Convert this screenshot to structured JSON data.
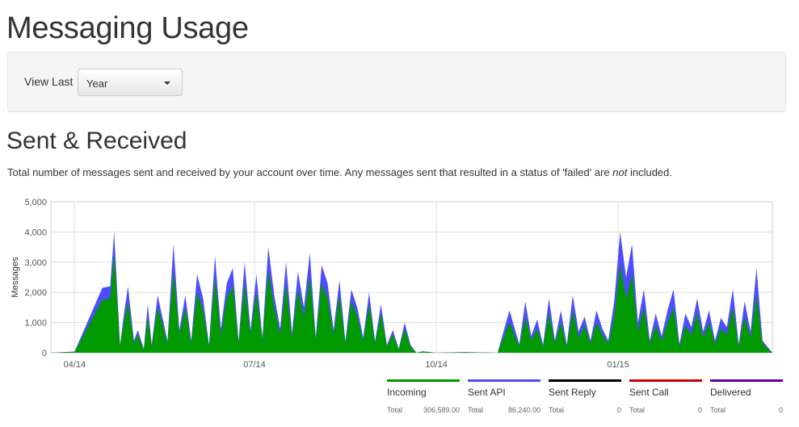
{
  "page": {
    "title": "Messaging Usage"
  },
  "filter": {
    "label": "View Last",
    "selected": "Year"
  },
  "section": {
    "title": "Sent & Received",
    "desc_before": "Total number of messages sent and received by your account over time. Any messages sent that resulted in a status of 'failed' are ",
    "desc_emphasis": "not",
    "desc_after": " included."
  },
  "chart_data": {
    "type": "area",
    "ylabel": "Messages",
    "xlabel": "",
    "ylim": [
      0,
      5000
    ],
    "y_ticks": [
      0,
      1000,
      2000,
      3000,
      4000,
      5000
    ],
    "y_tick_labels": [
      "0",
      "1,000",
      "2,000",
      "3,000",
      "4,000",
      "5,000"
    ],
    "x_range": [
      "2014-03-20",
      "2015-03-20"
    ],
    "x_ticks": [
      {
        "date": "2014-04-01",
        "label": "04/14"
      },
      {
        "date": "2014-07-01",
        "label": "07/14"
      },
      {
        "date": "2014-10-01",
        "label": "10/14"
      },
      {
        "date": "2015-01-01",
        "label": "01/15"
      }
    ],
    "grid": true,
    "stacked": true,
    "x_dates": [
      "2014-03-20",
      "2014-04-01",
      "2014-04-15",
      "2014-04-19",
      "2014-04-21",
      "2014-04-24",
      "2014-04-26",
      "2014-04-28",
      "2014-05-01",
      "2014-05-03",
      "2014-05-06",
      "2014-05-08",
      "2014-05-10",
      "2014-05-13",
      "2014-05-16",
      "2014-05-18",
      "2014-05-21",
      "2014-05-24",
      "2014-05-27",
      "2014-05-30",
      "2014-06-02",
      "2014-06-05",
      "2014-06-08",
      "2014-06-11",
      "2014-06-14",
      "2014-06-17",
      "2014-06-20",
      "2014-06-23",
      "2014-06-26",
      "2014-06-29",
      "2014-07-02",
      "2014-07-05",
      "2014-07-08",
      "2014-07-11",
      "2014-07-14",
      "2014-07-17",
      "2014-07-20",
      "2014-07-23",
      "2014-07-26",
      "2014-07-29",
      "2014-08-01",
      "2014-08-04",
      "2014-08-07",
      "2014-08-10",
      "2014-08-13",
      "2014-08-16",
      "2014-08-19",
      "2014-08-22",
      "2014-08-25",
      "2014-08-28",
      "2014-08-31",
      "2014-09-03",
      "2014-09-06",
      "2014-09-09",
      "2014-09-12",
      "2014-09-15",
      "2014-09-18",
      "2014-09-21",
      "2014-09-24",
      "2014-10-01",
      "2014-10-15",
      "2014-11-01",
      "2014-11-07",
      "2014-11-12",
      "2014-11-15",
      "2014-11-18",
      "2014-11-21",
      "2014-11-24",
      "2014-11-27",
      "2014-11-30",
      "2014-12-03",
      "2014-12-06",
      "2014-12-09",
      "2014-12-12",
      "2014-12-15",
      "2014-12-18",
      "2014-12-21",
      "2014-12-24",
      "2014-12-27",
      "2014-12-30",
      "2015-01-02",
      "2015-01-05",
      "2015-01-08",
      "2015-01-11",
      "2015-01-14",
      "2015-01-17",
      "2015-01-20",
      "2015-01-23",
      "2015-01-26",
      "2015-01-29",
      "2015-02-01",
      "2015-02-04",
      "2015-02-07",
      "2015-02-10",
      "2015-02-13",
      "2015-02-16",
      "2015-02-19",
      "2015-02-22",
      "2015-02-25",
      "2015-02-28",
      "2015-03-03",
      "2015-03-06",
      "2015-03-09",
      "2015-03-12",
      "2015-03-15",
      "2015-03-20"
    ],
    "series": [
      {
        "name": "Incoming",
        "color": "#009900",
        "values": [
          0,
          30,
          1750,
          1800,
          3300,
          200,
          1000,
          1700,
          300,
          600,
          100,
          1200,
          200,
          1500,
          800,
          300,
          2700,
          600,
          1500,
          300,
          2000,
          1400,
          200,
          2500,
          600,
          1800,
          2200,
          300,
          2300,
          600,
          2000,
          400,
          2700,
          1500,
          600,
          2300,
          500,
          2100,
          1200,
          2500,
          400,
          2300,
          1800,
          600,
          1900,
          300,
          1700,
          1200,
          400,
          1600,
          300,
          1300,
          200,
          600,
          100,
          800,
          200,
          0,
          40,
          0,
          20,
          0,
          1000,
          200,
          1200,
          400,
          800,
          200,
          1300,
          300,
          1000,
          200,
          1400,
          500,
          900,
          300,
          1000,
          600,
          300,
          1200,
          2900,
          1800,
          2600,
          700,
          1500,
          300,
          900,
          400,
          1000,
          1500,
          200,
          900,
          600,
          1300,
          500,
          1000,
          300,
          800,
          600,
          1500,
          200,
          1200,
          500,
          1900,
          300,
          0
        ]
      },
      {
        "name": "Sent API",
        "color": "#4d4dff",
        "values": [
          0,
          10,
          400,
          400,
          700,
          50,
          300,
          500,
          100,
          150,
          30,
          400,
          60,
          400,
          200,
          80,
          900,
          150,
          400,
          100,
          600,
          400,
          60,
          700,
          200,
          500,
          600,
          80,
          700,
          150,
          600,
          100,
          800,
          400,
          200,
          700,
          150,
          600,
          300,
          800,
          100,
          600,
          500,
          150,
          500,
          80,
          400,
          300,
          100,
          400,
          80,
          300,
          60,
          150,
          30,
          200,
          50,
          0,
          10,
          0,
          5,
          0,
          400,
          80,
          500,
          150,
          300,
          60,
          500,
          100,
          400,
          60,
          500,
          200,
          300,
          100,
          400,
          200,
          100,
          500,
          1100,
          700,
          1000,
          300,
          600,
          100,
          400,
          150,
          400,
          600,
          80,
          400,
          250,
          500,
          200,
          400,
          100,
          350,
          250,
          600,
          80,
          500,
          200,
          900,
          100,
          0
        ]
      },
      {
        "name": "Sent Reply",
        "color": "#000000",
        "values": []
      },
      {
        "name": "Sent Call",
        "color": "#cc0000",
        "values": []
      },
      {
        "name": "Delivered",
        "color": "#660099",
        "values": []
      }
    ]
  },
  "legend": {
    "total_label": "Total",
    "items": [
      {
        "name": "Incoming",
        "color": "#009900",
        "total": "306,589.00"
      },
      {
        "name": "Sent API",
        "color": "#4d4dff",
        "total": "86,240.00"
      },
      {
        "name": "Sent Reply",
        "color": "#000000",
        "total": "0"
      },
      {
        "name": "Sent Call",
        "color": "#cc0000",
        "total": "0"
      },
      {
        "name": "Delivered",
        "color": "#660099",
        "total": "0"
      }
    ]
  }
}
